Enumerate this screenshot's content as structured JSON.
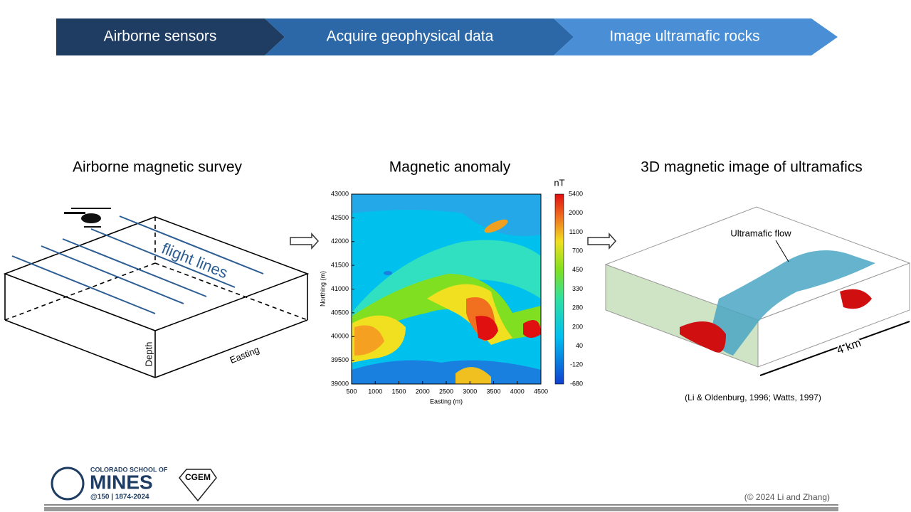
{
  "process": {
    "steps": [
      "Airborne sensors",
      "Acquire geophysical data",
      "Image ultramafic rocks"
    ]
  },
  "survey": {
    "title": "Airborne magnetic survey",
    "flight_label": "flight lines",
    "depth_label": "Depth",
    "easting_label": "Easting"
  },
  "anomaly": {
    "title": "Magnetic anomaly",
    "unit": "nT",
    "x_label": "Easting (m)",
    "y_label": "Northing (m)",
    "x_ticks": [
      "500",
      "1000",
      "1500",
      "2000",
      "2500",
      "3000",
      "3500",
      "4000",
      "4500"
    ],
    "y_ticks": [
      "39000",
      "39500",
      "40000",
      "40500",
      "41000",
      "41500",
      "42000",
      "42500",
      "43000"
    ],
    "colorbar_ticks": [
      "5400",
      "2000",
      "1100",
      "700",
      "450",
      "330",
      "280",
      "200",
      "40",
      "-120",
      "-680"
    ]
  },
  "image3d": {
    "title": "3D magnetic image of ultramafics",
    "annotation": "Ultramafic flow",
    "scale": "4 km",
    "citation": "(Li & Oldenburg, 1996;  Watts, 1997)"
  },
  "footer": {
    "school_line1": "COLORADO SCHOOL OF",
    "school_name": "MINES",
    "anniversary": "@150 | 1874-2024",
    "center": "CGEM",
    "copyright": "(© 2024 Li and Zhang)"
  }
}
